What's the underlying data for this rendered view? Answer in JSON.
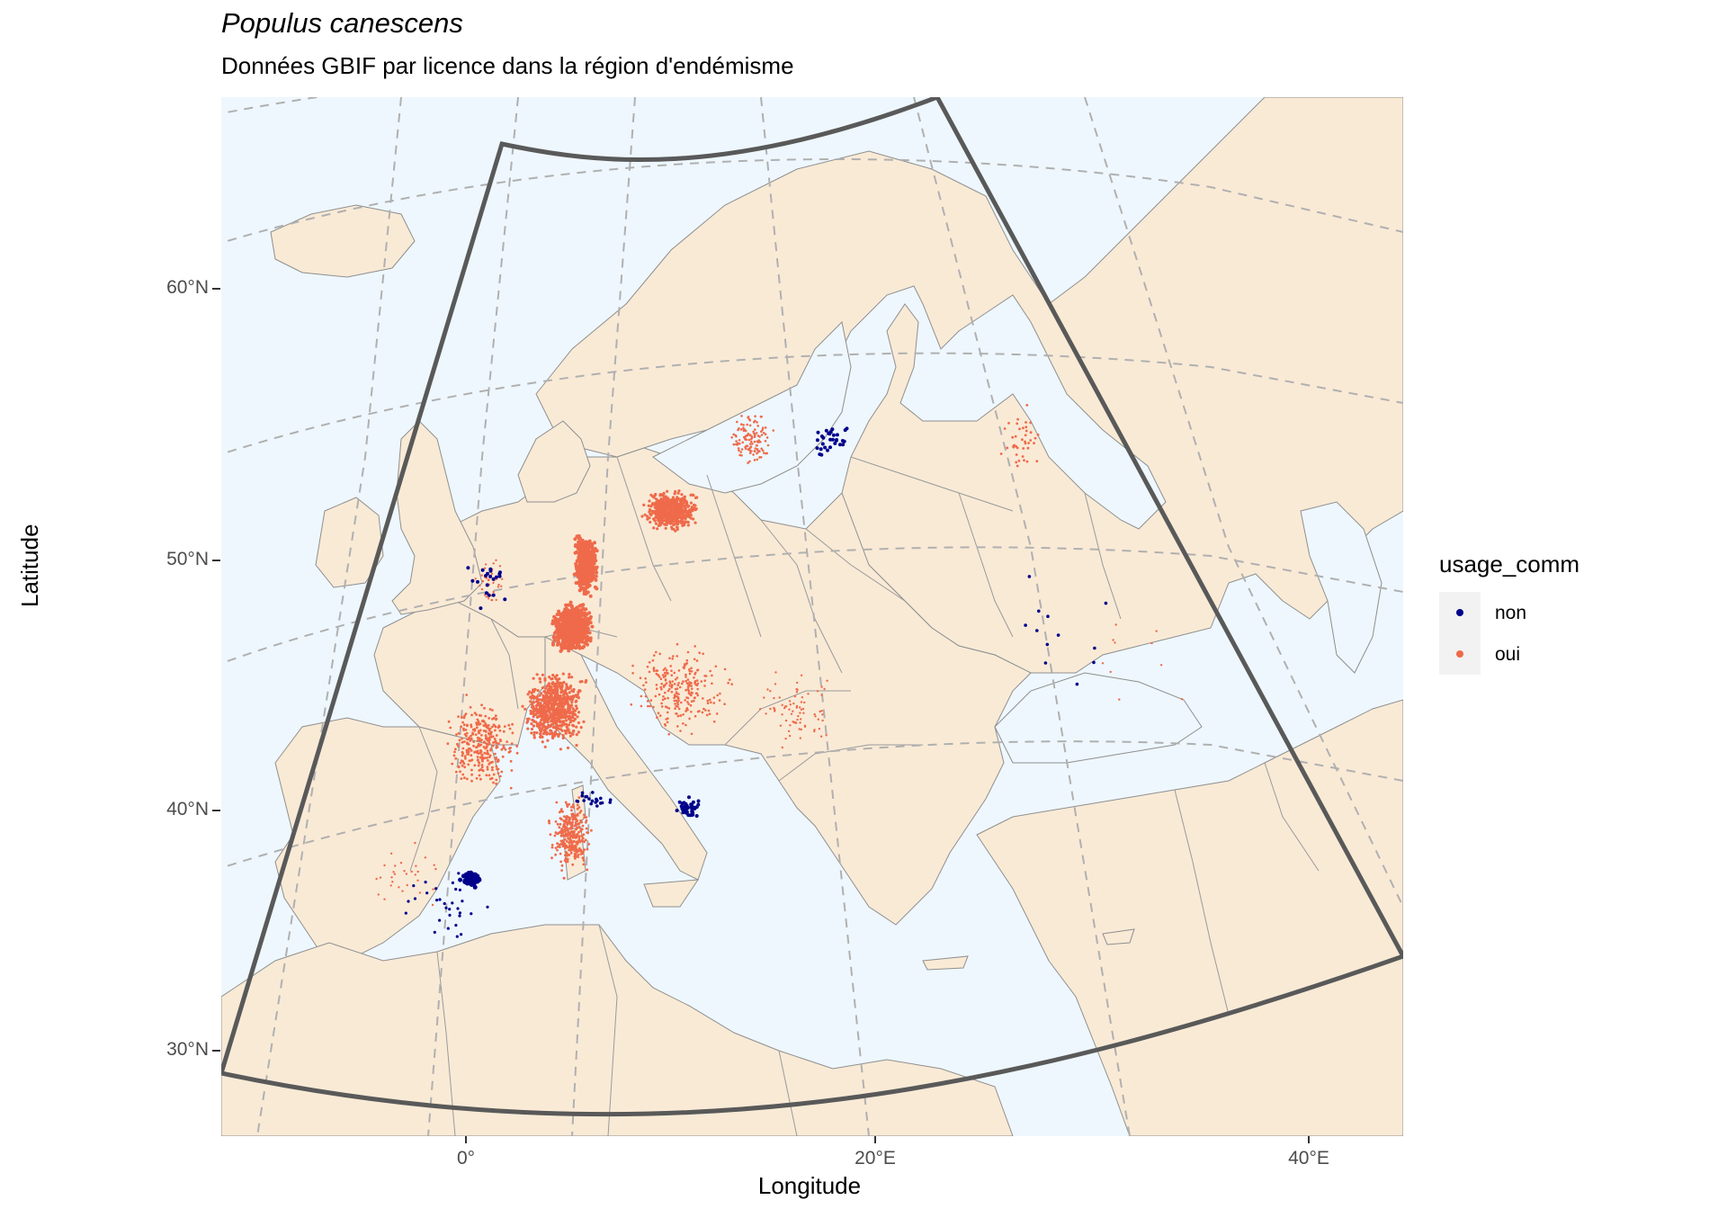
{
  "title": "Populus canescens",
  "subtitle": "Données GBIF par licence dans la région d'endémisme",
  "axes": {
    "x_title": "Longitude",
    "y_title": "Latitude",
    "x_ticks": [
      "0°",
      "20°E",
      "40°E"
    ],
    "y_ticks": [
      "60°N",
      "50°N",
      "40°N",
      "30°N"
    ]
  },
  "legend": {
    "title": "usage_comm",
    "items": [
      {
        "label": "non",
        "color": "#00008b"
      },
      {
        "label": "oui",
        "color": "#ef6a4a"
      }
    ]
  },
  "colors": {
    "sea": "#eef7fd",
    "land": "#f9ead6",
    "border": "#888888",
    "graticule": "#b0b0b0",
    "endemism_region": "#595959",
    "non": "#00008b",
    "oui": "#ef6a4a"
  }
}
